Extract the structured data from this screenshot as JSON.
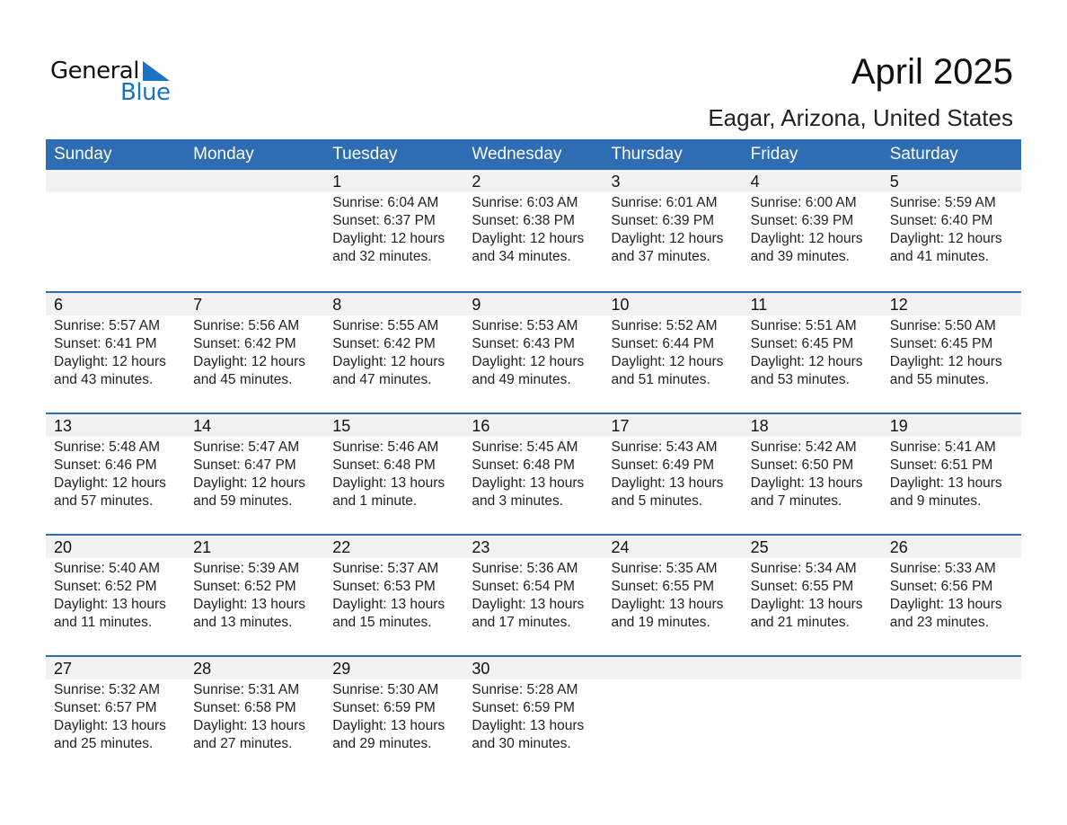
{
  "logo": {
    "text_general": "General",
    "text_blue": "Blue",
    "color": "#1a73c0"
  },
  "header": {
    "title": "April 2025",
    "subtitle": "Eagar, Arizona, United States"
  },
  "colors": {
    "header_bg": "#2e6db4",
    "band_bg": "#f2f2f2"
  },
  "weekdays": [
    "Sunday",
    "Monday",
    "Tuesday",
    "Wednesday",
    "Thursday",
    "Friday",
    "Saturday"
  ],
  "weeks": [
    [
      null,
      null,
      {
        "day": "1",
        "sunrise": "Sunrise: 6:04 AM",
        "sunset": "Sunset: 6:37 PM",
        "daylight": "Daylight: 12 hours",
        "minutes": "and 32 minutes."
      },
      {
        "day": "2",
        "sunrise": "Sunrise: 6:03 AM",
        "sunset": "Sunset: 6:38 PM",
        "daylight": "Daylight: 12 hours",
        "minutes": "and 34 minutes."
      },
      {
        "day": "3",
        "sunrise": "Sunrise: 6:01 AM",
        "sunset": "Sunset: 6:39 PM",
        "daylight": "Daylight: 12 hours",
        "minutes": "and 37 minutes."
      },
      {
        "day": "4",
        "sunrise": "Sunrise: 6:00 AM",
        "sunset": "Sunset: 6:39 PM",
        "daylight": "Daylight: 12 hours",
        "minutes": "and 39 minutes."
      },
      {
        "day": "5",
        "sunrise": "Sunrise: 5:59 AM",
        "sunset": "Sunset: 6:40 PM",
        "daylight": "Daylight: 12 hours",
        "minutes": "and 41 minutes."
      }
    ],
    [
      {
        "day": "6",
        "sunrise": "Sunrise: 5:57 AM",
        "sunset": "Sunset: 6:41 PM",
        "daylight": "Daylight: 12 hours",
        "minutes": "and 43 minutes."
      },
      {
        "day": "7",
        "sunrise": "Sunrise: 5:56 AM",
        "sunset": "Sunset: 6:42 PM",
        "daylight": "Daylight: 12 hours",
        "minutes": "and 45 minutes."
      },
      {
        "day": "8",
        "sunrise": "Sunrise: 5:55 AM",
        "sunset": "Sunset: 6:42 PM",
        "daylight": "Daylight: 12 hours",
        "minutes": "and 47 minutes."
      },
      {
        "day": "9",
        "sunrise": "Sunrise: 5:53 AM",
        "sunset": "Sunset: 6:43 PM",
        "daylight": "Daylight: 12 hours",
        "minutes": "and 49 minutes."
      },
      {
        "day": "10",
        "sunrise": "Sunrise: 5:52 AM",
        "sunset": "Sunset: 6:44 PM",
        "daylight": "Daylight: 12 hours",
        "minutes": "and 51 minutes."
      },
      {
        "day": "11",
        "sunrise": "Sunrise: 5:51 AM",
        "sunset": "Sunset: 6:45 PM",
        "daylight": "Daylight: 12 hours",
        "minutes": "and 53 minutes."
      },
      {
        "day": "12",
        "sunrise": "Sunrise: 5:50 AM",
        "sunset": "Sunset: 6:45 PM",
        "daylight": "Daylight: 12 hours",
        "minutes": "and 55 minutes."
      }
    ],
    [
      {
        "day": "13",
        "sunrise": "Sunrise: 5:48 AM",
        "sunset": "Sunset: 6:46 PM",
        "daylight": "Daylight: 12 hours",
        "minutes": "and 57 minutes."
      },
      {
        "day": "14",
        "sunrise": "Sunrise: 5:47 AM",
        "sunset": "Sunset: 6:47 PM",
        "daylight": "Daylight: 12 hours",
        "minutes": "and 59 minutes."
      },
      {
        "day": "15",
        "sunrise": "Sunrise: 5:46 AM",
        "sunset": "Sunset: 6:48 PM",
        "daylight": "Daylight: 13 hours",
        "minutes": "and 1 minute."
      },
      {
        "day": "16",
        "sunrise": "Sunrise: 5:45 AM",
        "sunset": "Sunset: 6:48 PM",
        "daylight": "Daylight: 13 hours",
        "minutes": "and 3 minutes."
      },
      {
        "day": "17",
        "sunrise": "Sunrise: 5:43 AM",
        "sunset": "Sunset: 6:49 PM",
        "daylight": "Daylight: 13 hours",
        "minutes": "and 5 minutes."
      },
      {
        "day": "18",
        "sunrise": "Sunrise: 5:42 AM",
        "sunset": "Sunset: 6:50 PM",
        "daylight": "Daylight: 13 hours",
        "minutes": "and 7 minutes."
      },
      {
        "day": "19",
        "sunrise": "Sunrise: 5:41 AM",
        "sunset": "Sunset: 6:51 PM",
        "daylight": "Daylight: 13 hours",
        "minutes": "and 9 minutes."
      }
    ],
    [
      {
        "day": "20",
        "sunrise": "Sunrise: 5:40 AM",
        "sunset": "Sunset: 6:52 PM",
        "daylight": "Daylight: 13 hours",
        "minutes": "and 11 minutes."
      },
      {
        "day": "21",
        "sunrise": "Sunrise: 5:39 AM",
        "sunset": "Sunset: 6:52 PM",
        "daylight": "Daylight: 13 hours",
        "minutes": "and 13 minutes."
      },
      {
        "day": "22",
        "sunrise": "Sunrise: 5:37 AM",
        "sunset": "Sunset: 6:53 PM",
        "daylight": "Daylight: 13 hours",
        "minutes": "and 15 minutes."
      },
      {
        "day": "23",
        "sunrise": "Sunrise: 5:36 AM",
        "sunset": "Sunset: 6:54 PM",
        "daylight": "Daylight: 13 hours",
        "minutes": "and 17 minutes."
      },
      {
        "day": "24",
        "sunrise": "Sunrise: 5:35 AM",
        "sunset": "Sunset: 6:55 PM",
        "daylight": "Daylight: 13 hours",
        "minutes": "and 19 minutes."
      },
      {
        "day": "25",
        "sunrise": "Sunrise: 5:34 AM",
        "sunset": "Sunset: 6:55 PM",
        "daylight": "Daylight: 13 hours",
        "minutes": "and 21 minutes."
      },
      {
        "day": "26",
        "sunrise": "Sunrise: 5:33 AM",
        "sunset": "Sunset: 6:56 PM",
        "daylight": "Daylight: 13 hours",
        "minutes": "and 23 minutes."
      }
    ],
    [
      {
        "day": "27",
        "sunrise": "Sunrise: 5:32 AM",
        "sunset": "Sunset: 6:57 PM",
        "daylight": "Daylight: 13 hours",
        "minutes": "and 25 minutes."
      },
      {
        "day": "28",
        "sunrise": "Sunrise: 5:31 AM",
        "sunset": "Sunset: 6:58 PM",
        "daylight": "Daylight: 13 hours",
        "minutes": "and 27 minutes."
      },
      {
        "day": "29",
        "sunrise": "Sunrise: 5:30 AM",
        "sunset": "Sunset: 6:59 PM",
        "daylight": "Daylight: 13 hours",
        "minutes": "and 29 minutes."
      },
      {
        "day": "30",
        "sunrise": "Sunrise: 5:28 AM",
        "sunset": "Sunset: 6:59 PM",
        "daylight": "Daylight: 13 hours",
        "minutes": "and 30 minutes."
      },
      null,
      null,
      null
    ]
  ]
}
